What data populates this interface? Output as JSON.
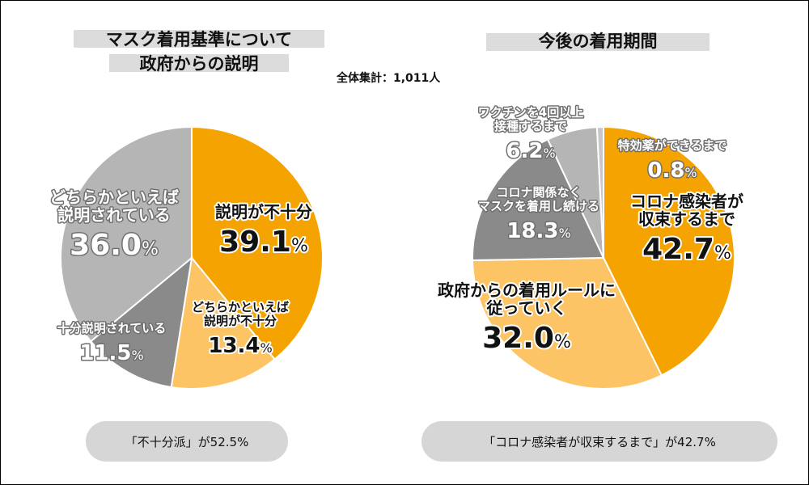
{
  "total_label": "全体集計",
  "total_value": "1,011人",
  "summaries": [
    "「不十分派」が52.5%",
    "「コロナ感染者が収束するまで」が42.7%"
  ],
  "chart_data": [
    {
      "type": "pie",
      "title": "マスク着用基準について政府からの説明",
      "title_lines": [
        "マスク着用基準について",
        "政府からの説明"
      ],
      "start": "12 o'clock, clockwise",
      "slices": [
        {
          "label_lines": [
            "説明が不十分"
          ],
          "value": 39.1,
          "color": "#f5a300",
          "label_color": "#111111",
          "highlight": true,
          "size": "large"
        },
        {
          "label_lines": [
            "どちらかといえば",
            "説明が不十分"
          ],
          "value": 13.4,
          "color": "#fcc465",
          "label_color": "#111111",
          "highlight": true,
          "size": "small"
        },
        {
          "label_lines": [
            "十分説明されている"
          ],
          "value": 11.5,
          "color": "#8a8a8a",
          "label_color": "#ffffff",
          "highlight": false,
          "size": "small"
        },
        {
          "label_lines": [
            "どちらかといえば",
            "説明されている"
          ],
          "value": 36.0,
          "color": "#b5b5b5",
          "label_color": "#ffffff",
          "highlight": false,
          "size": "large"
        }
      ]
    },
    {
      "type": "pie",
      "title": "今後の着用期間",
      "start": "12 o'clock, clockwise",
      "slices": [
        {
          "label_lines": [
            "コロナ感染者が",
            "収束するまで"
          ],
          "value": 42.7,
          "color": "#f5a300",
          "label_color": "#111111",
          "highlight": true,
          "size": "large"
        },
        {
          "label_lines": [
            "政府からの着用ルールに",
            "従っていく"
          ],
          "value": 32.0,
          "color": "#fcc465",
          "label_color": "#111111",
          "highlight": true,
          "size": "large"
        },
        {
          "label_lines": [
            "コロナ関係なく",
            "マスクを着用し続ける"
          ],
          "value": 18.3,
          "color": "#8a8a8a",
          "label_color": "#ffffff",
          "highlight": false,
          "size": "small"
        },
        {
          "label_lines": [
            "ワクチンを4回以上",
            "接種するまで"
          ],
          "value": 6.2,
          "color": "#b5b5b5",
          "label_color": "#ffffff",
          "highlight": false,
          "size": "small"
        },
        {
          "label_lines": [
            "特効薬ができるまで"
          ],
          "value": 0.8,
          "color": "#c8c8c8",
          "label_color": "#ffffff",
          "highlight": false,
          "size": "small"
        }
      ]
    }
  ]
}
